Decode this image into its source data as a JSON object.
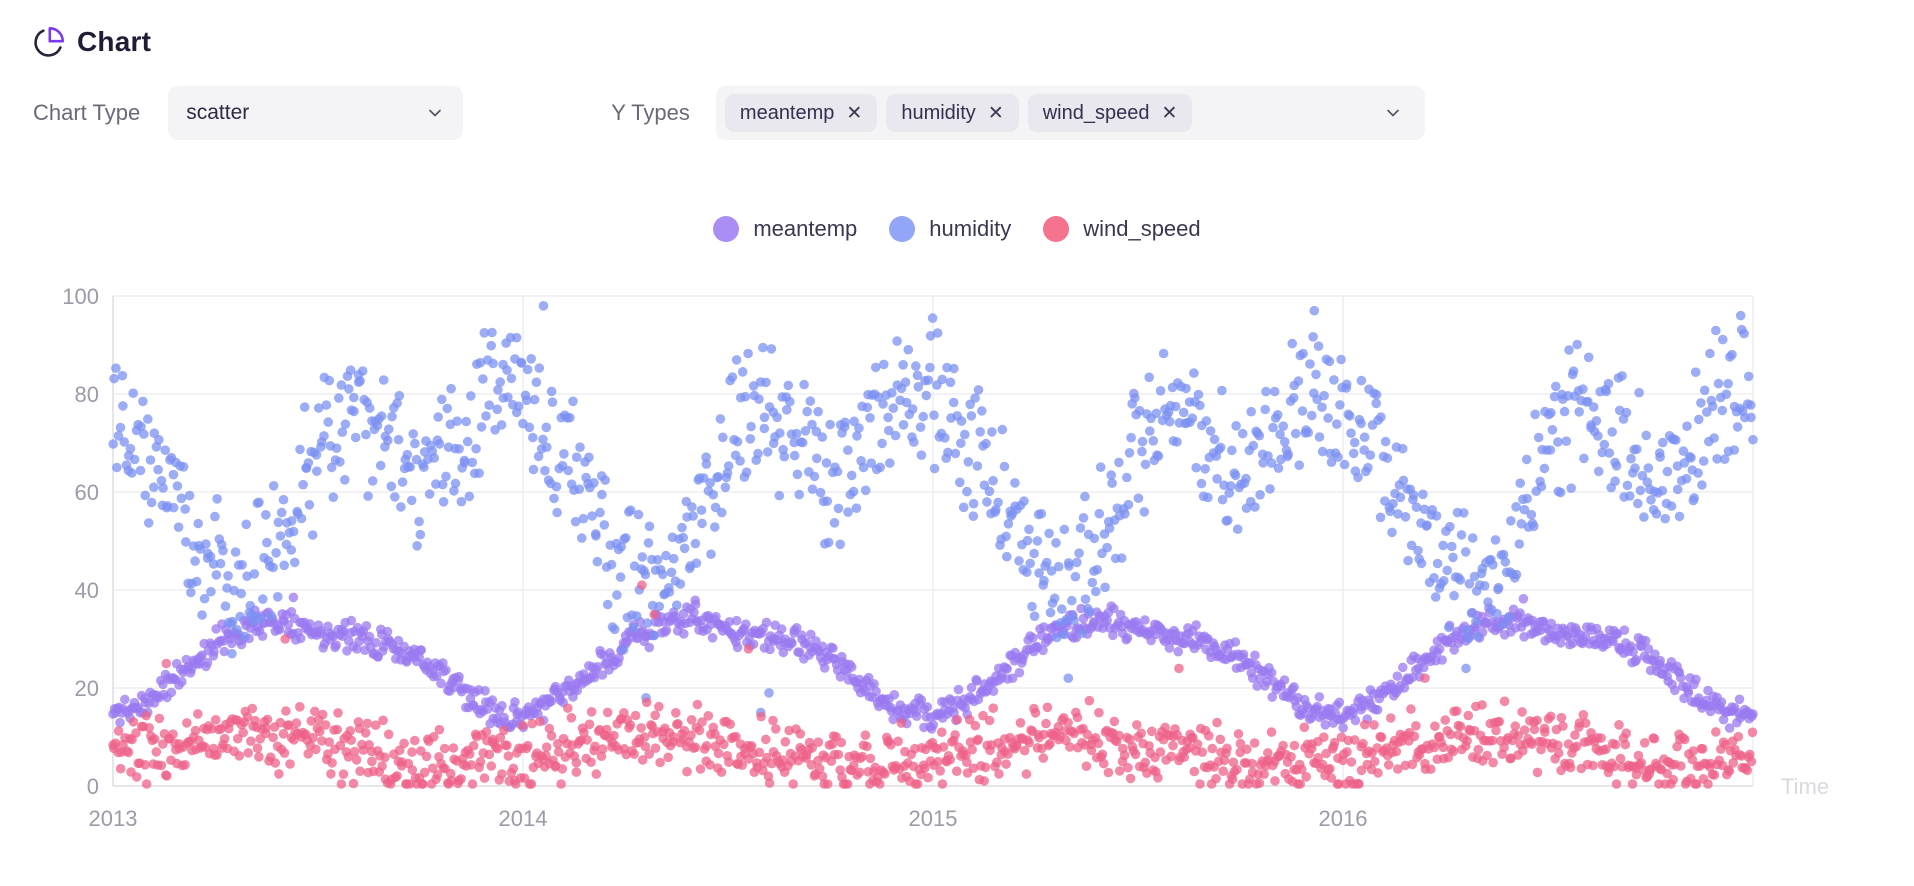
{
  "header": {
    "title": "Chart"
  },
  "controls": {
    "chart_type_label": "Chart Type",
    "chart_type_value": "scatter",
    "y_types_label": "Y Types",
    "y_type_tags": [
      {
        "label": "meantemp"
      },
      {
        "label": "humidity"
      },
      {
        "label": "wind_speed"
      }
    ],
    "remove_symbol": "✕"
  },
  "legend": {
    "items": [
      {
        "label": "meantemp"
      },
      {
        "label": "humidity"
      },
      {
        "label": "wind_speed"
      }
    ]
  },
  "chart_data": {
    "type": "scatter",
    "title": "",
    "xlabel": "Time",
    "ylabel": "",
    "x_range": [
      2013,
      2017
    ],
    "x_ticks": [
      "2013",
      "2014",
      "2015",
      "2016"
    ],
    "ylim": [
      0,
      100
    ],
    "y_ticks": [
      0,
      20,
      40,
      60,
      80,
      100
    ],
    "grid": true,
    "legend_position": "top-center",
    "n_points_per_series": 1100,
    "point_radius": 4.8,
    "point_opacity": 0.75,
    "axis_color": "#dddde4",
    "grid_color": "#ededf2",
    "tick_label_color": "#9b9aa8",
    "axis_title_color": "#d9d9e1",
    "series": [
      {
        "name": "meantemp",
        "color": "#9a79f0",
        "legend_color": "#ab8ef5",
        "seed": 11,
        "monthly_mean": [
          14.2,
          17.5,
          23,
          29,
          33,
          34,
          31.5,
          30.5,
          29.5,
          26,
          20.5,
          15.5
        ],
        "spread": 3.6,
        "outliers": [
          [
            2013.44,
            38.5
          ],
          [
            2014.42,
            37.9
          ],
          [
            2016.44,
            38.2
          ]
        ]
      },
      {
        "name": "humidity",
        "color": "#7b90f2",
        "legend_color": "#92a5f6",
        "seed": 22,
        "monthly_mean": [
          79,
          69,
          57,
          44,
          41,
          50,
          70,
          77,
          73,
          62,
          69,
          80
        ],
        "spread": 17,
        "outliers": [
          [
            2014.3,
            18
          ],
          [
            2014.58,
            15
          ],
          [
            2014.6,
            19
          ],
          [
            2015.33,
            22
          ],
          [
            2016.3,
            24
          ],
          [
            2013.29,
            27
          ],
          [
            2014.05,
            98
          ],
          [
            2015.93,
            97
          ],
          [
            2016.97,
            96
          ]
        ]
      },
      {
        "name": "wind_speed",
        "color": "#ee6288",
        "legend_color": "#f4738f",
        "seed": 33,
        "monthly_mean": [
          5.5,
          7.5,
          9,
          9.5,
          10,
          9.5,
          8.5,
          7,
          6,
          4.5,
          4.5,
          5.5
        ],
        "spread": 8,
        "outliers": [
          [
            2014.29,
            41
          ],
          [
            2014.32,
            35
          ],
          [
            2013.42,
            30
          ],
          [
            2013.13,
            25
          ],
          [
            2014.55,
            28
          ],
          [
            2015.6,
            24
          ],
          [
            2016.2,
            22
          ]
        ]
      }
    ]
  }
}
